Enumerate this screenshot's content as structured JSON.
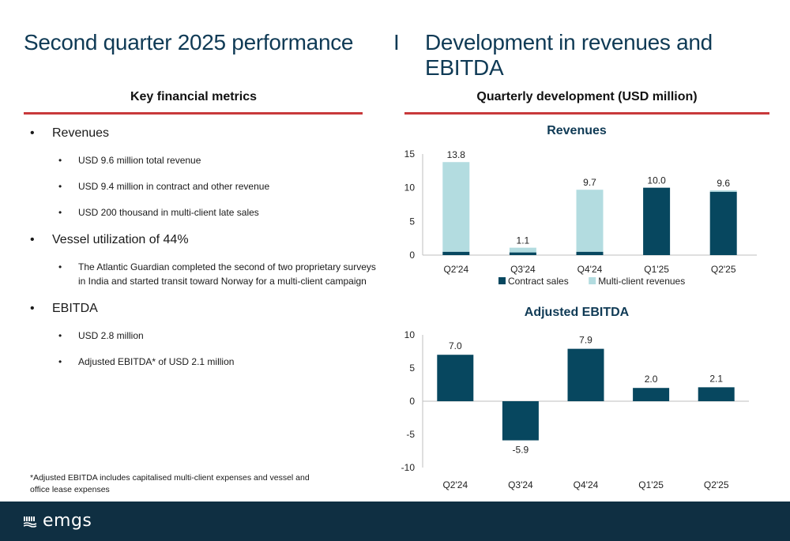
{
  "header": {
    "left_title": "Second quarter 2025 performance",
    "separator": "I",
    "right_title": "Development in revenues and EBITDA"
  },
  "left_panel": {
    "heading": "Key financial metrics",
    "items": [
      {
        "text": "Revenues",
        "sub": [
          "USD 9.6 million total revenue",
          "USD 9.4 million in contract and other revenue",
          "USD 200 thousand in multi-client late sales"
        ]
      },
      {
        "text": "Vessel utilization of 44%",
        "sub": [
          "The Atlantic Guardian completed the second of two proprietary surveys in India and started transit toward Norway for a multi-client campaign"
        ]
      },
      {
        "text": "EBITDA",
        "sub": [
          "USD 2.8 million",
          "Adjusted EBITDA* of USD 2.1 million"
        ]
      }
    ],
    "footnote": "*Adjusted EBITDA includes capitalised multi-client expenses and vessel and office lease expenses"
  },
  "right_panel": {
    "heading": "Quarterly development (USD million)"
  },
  "colors": {
    "dark": "#07475f",
    "light": "#b3dce0",
    "accent": "#c8393b",
    "footer": "#0f2f42"
  },
  "chart_data": [
    {
      "type": "bar",
      "stacked": true,
      "title": "Revenues",
      "categories": [
        "Q2'24",
        "Q3'24",
        "Q4'24",
        "Q1'25",
        "Q2'25"
      ],
      "series": [
        {
          "name": "Contract sales",
          "values": [
            0.5,
            0.4,
            0.5,
            10.0,
            9.4
          ]
        },
        {
          "name": "Multi-client revenues",
          "values": [
            13.3,
            0.7,
            9.2,
            0.0,
            0.2
          ]
        }
      ],
      "totals": [
        "13.8",
        "1.1",
        "9.7",
        "10.0",
        "9.6"
      ],
      "ylim": [
        0,
        15
      ],
      "yticks": [
        "0",
        "5",
        "10",
        "15"
      ],
      "legend": "bottom"
    },
    {
      "type": "bar",
      "title": "Adjusted EBITDA",
      "categories": [
        "Q2'24",
        "Q3'24",
        "Q4'24",
        "Q1'25",
        "Q2'25"
      ],
      "values": [
        7.0,
        -5.9,
        7.9,
        2.0,
        2.1
      ],
      "labels": [
        "7.0",
        "-5.9",
        "7.9",
        "2.0",
        "2.1"
      ],
      "ylim": [
        -10,
        10
      ],
      "yticks": [
        "-10",
        "-5",
        "0",
        "5",
        "10"
      ]
    }
  ],
  "footer": {
    "logo": "emgs"
  }
}
